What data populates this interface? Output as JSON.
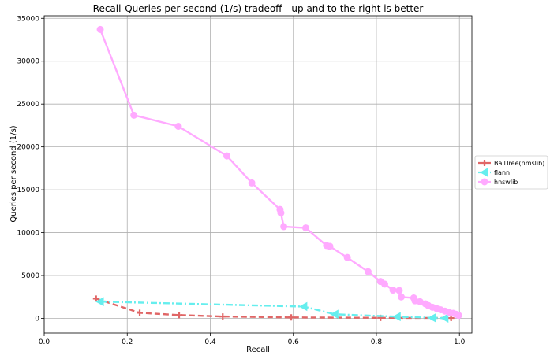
{
  "chart_data": {
    "type": "line",
    "title": "Recall-Queries per second (1/s) tradeoff - up and to the right is better",
    "xlabel": "Recall",
    "ylabel": "Queries per second (1/s)",
    "xlim": [
      0.0,
      1.03
    ],
    "ylim": [
      -1700,
      35300
    ],
    "xticks": [
      0.0,
      0.2,
      0.4,
      0.6,
      0.8,
      1.0
    ],
    "xtick_labels": [
      "0.0",
      "0.2",
      "0.4",
      "0.6",
      "0.8",
      "1.0"
    ],
    "yticks": [
      0,
      5000,
      10000,
      15000,
      20000,
      25000,
      30000,
      35000
    ],
    "ytick_labels": [
      "0",
      "5000",
      "10000",
      "15000",
      "20000",
      "25000",
      "30000",
      "35000"
    ],
    "grid": true,
    "legend_position": "right",
    "series": [
      {
        "name": "BallTree(nmslib)",
        "color": "#e06666",
        "line_style": "dashed",
        "marker": "plus",
        "points": [
          [
            0.125,
            2300
          ],
          [
            0.23,
            650
          ],
          [
            0.325,
            380
          ],
          [
            0.43,
            220
          ],
          [
            0.595,
            110
          ],
          [
            0.81,
            60
          ],
          [
            0.98,
            40
          ]
        ]
      },
      {
        "name": "flann",
        "color": "#66eeee",
        "line_style": "dashdot",
        "marker": "triangle-left",
        "points": [
          [
            0.135,
            1950
          ],
          [
            0.625,
            1380
          ],
          [
            0.7,
            480
          ],
          [
            0.85,
            200
          ],
          [
            0.935,
            60
          ],
          [
            0.965,
            30
          ]
        ]
      },
      {
        "name": "hnswlib",
        "color": "#ffaaff",
        "line_style": "solid",
        "marker": "circle",
        "points": [
          [
            0.135,
            33700
          ],
          [
            0.216,
            23700
          ],
          [
            0.323,
            22400
          ],
          [
            0.44,
            18950
          ],
          [
            0.5,
            15800
          ],
          [
            0.568,
            12700
          ],
          [
            0.57,
            12300
          ],
          [
            0.577,
            10700
          ],
          [
            0.63,
            10550
          ],
          [
            0.68,
            8500
          ],
          [
            0.688,
            8400
          ],
          [
            0.73,
            7100
          ],
          [
            0.78,
            5450
          ],
          [
            0.81,
            4300
          ],
          [
            0.82,
            4000
          ],
          [
            0.84,
            3300
          ],
          [
            0.855,
            3250
          ],
          [
            0.86,
            2500
          ],
          [
            0.89,
            2380
          ],
          [
            0.893,
            2050
          ],
          [
            0.905,
            1950
          ],
          [
            0.918,
            1700
          ],
          [
            0.925,
            1500
          ],
          [
            0.935,
            1300
          ],
          [
            0.945,
            1150
          ],
          [
            0.955,
            1000
          ],
          [
            0.965,
            850
          ],
          [
            0.975,
            720
          ],
          [
            0.985,
            600
          ],
          [
            0.992,
            480
          ],
          [
            0.998,
            350
          ]
        ]
      }
    ]
  }
}
